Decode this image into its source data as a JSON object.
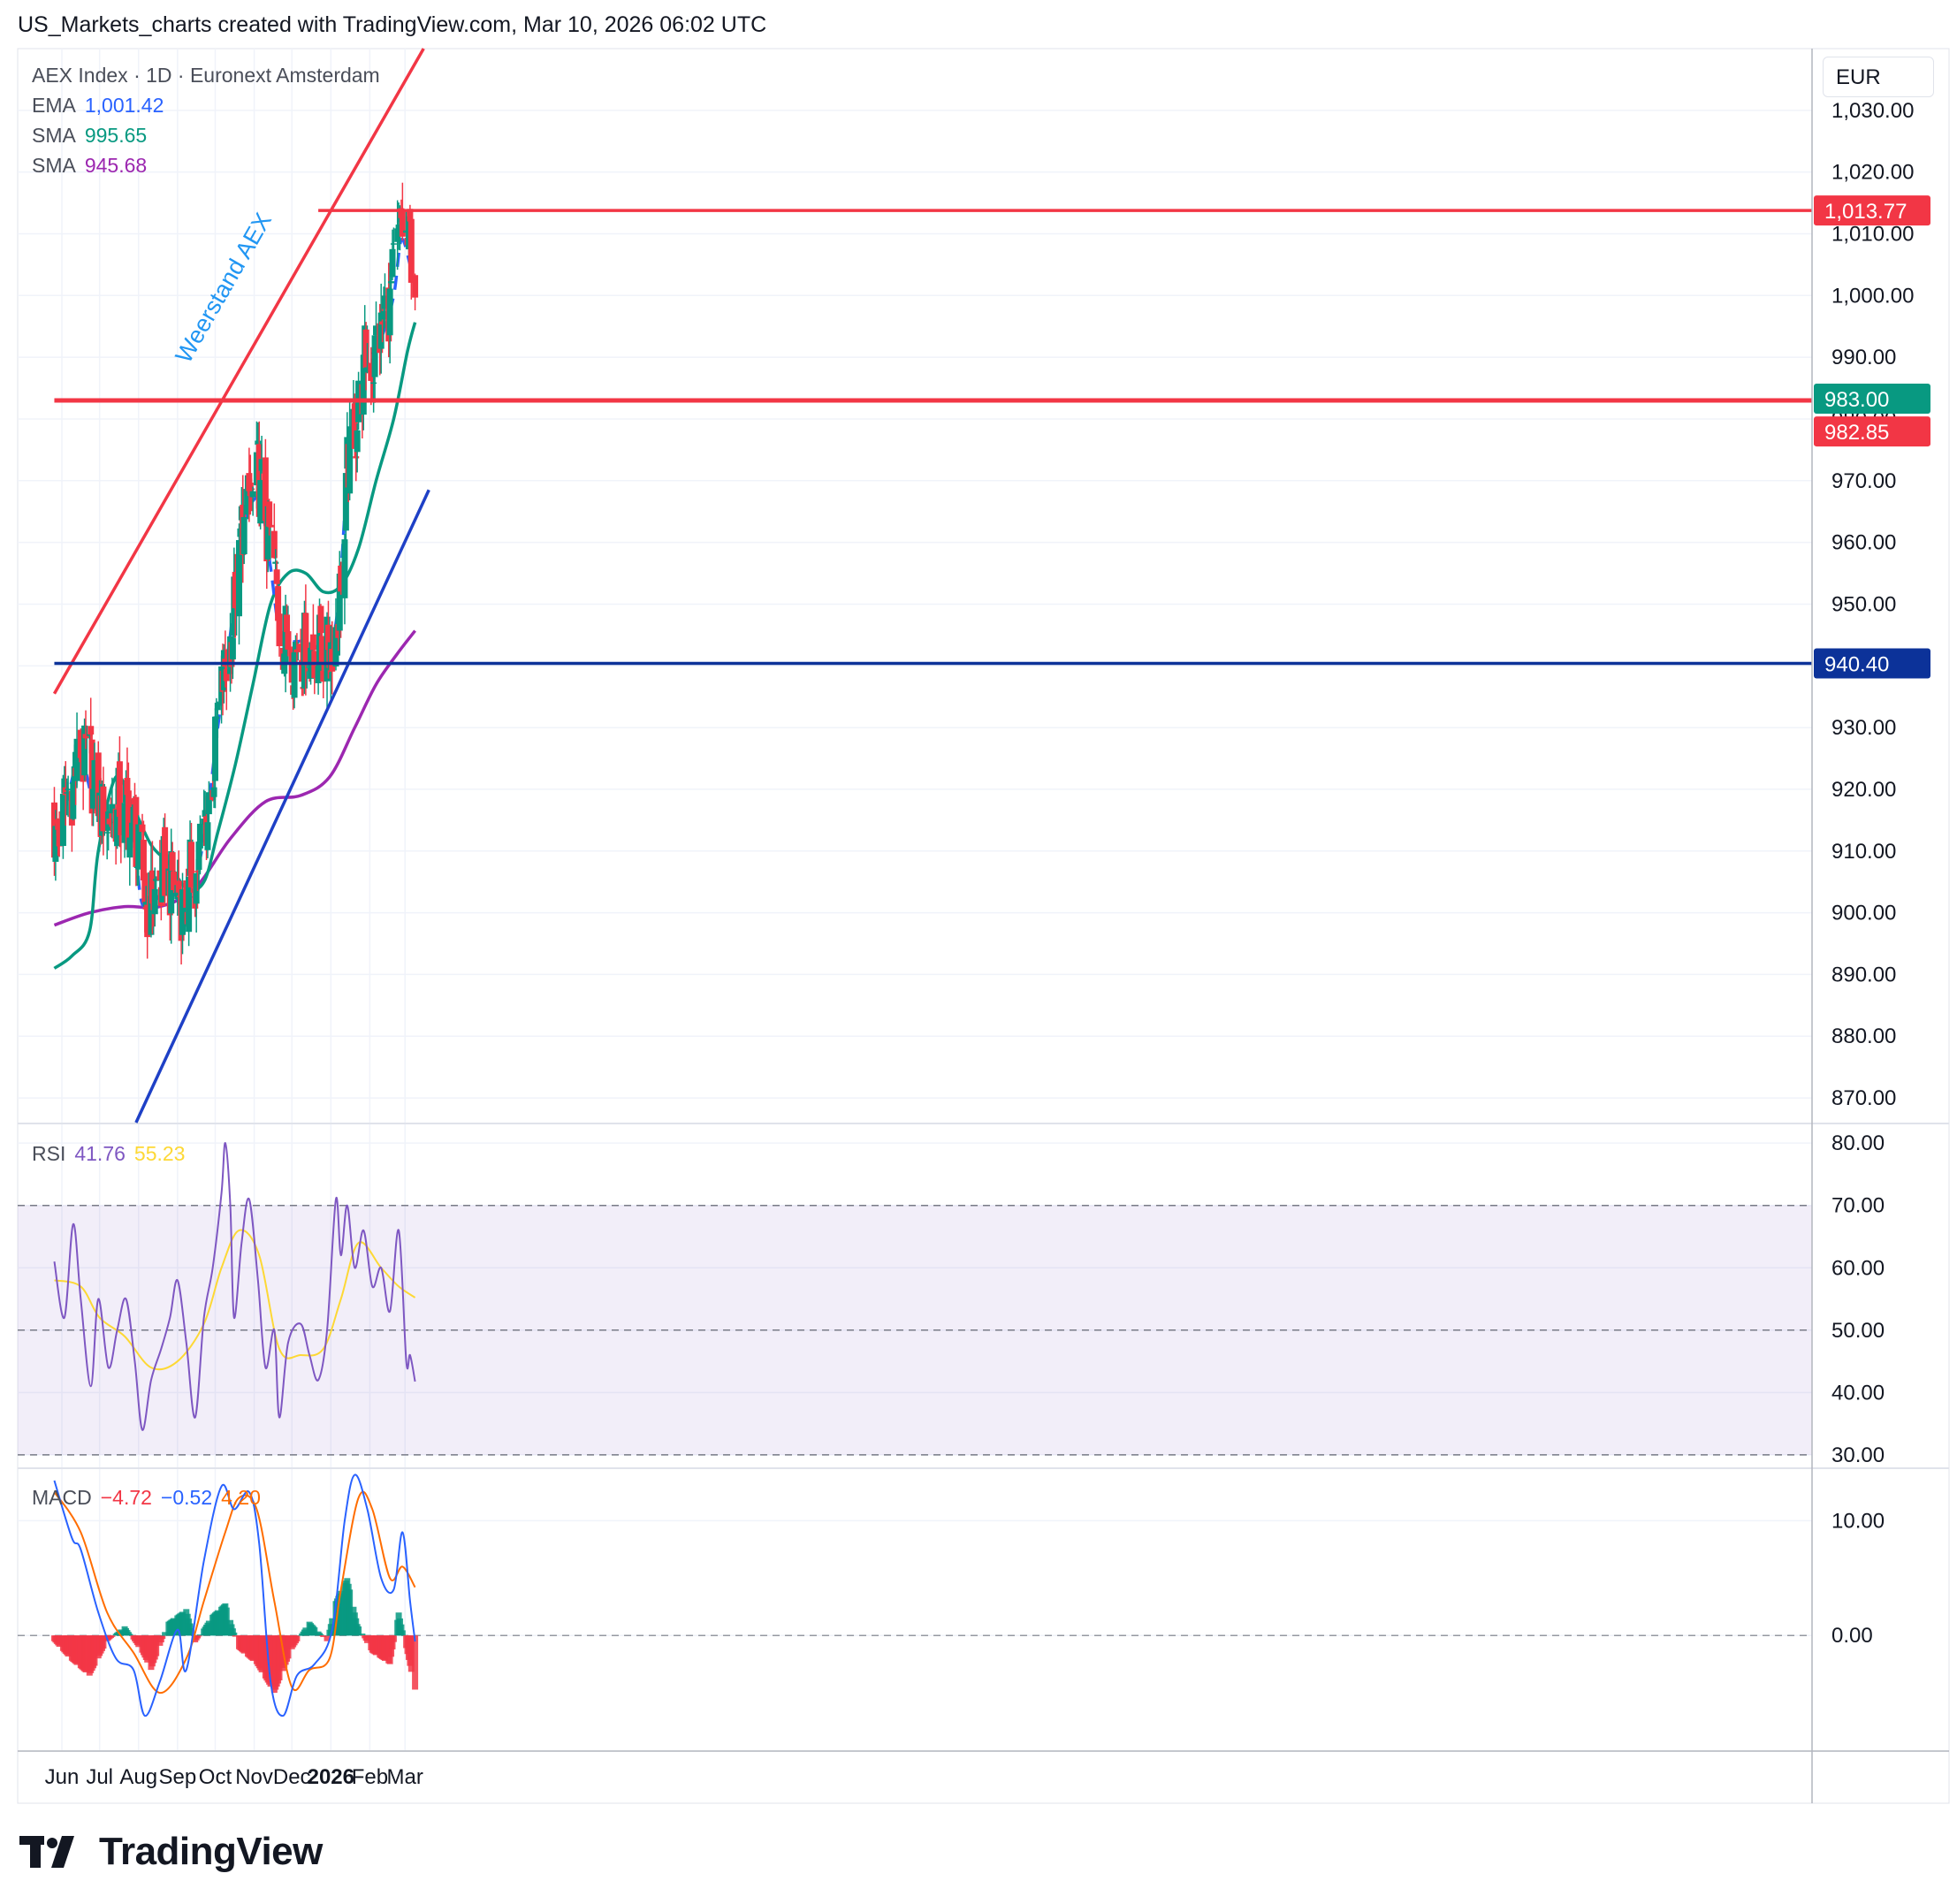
{
  "header": {
    "title": "US_Markets_charts created with TradingView.com, Mar 10, 2026 06:02 UTC"
  },
  "currency": "EUR",
  "brand": {
    "name": "TradingView"
  },
  "legend": {
    "symbol": "AEX Index · 1D · Euronext Amsterdam",
    "ema_label": "EMA",
    "ema_value": "1,001.42",
    "sma1_label": "SMA",
    "sma1_value": "995.65",
    "sma2_label": "SMA",
    "sma2_value": "945.68",
    "rsi_label": "RSI",
    "rsi_value": "41.76",
    "rsi_ma_value": "55.23",
    "macd_label": "MACD",
    "macd_hist": "−4.72",
    "macd_line": "−0.52",
    "macd_signal": "4.20"
  },
  "colors": {
    "up": "#089981",
    "down": "#f23645",
    "ema": "#2962ff",
    "sma50": "#089981",
    "sma200": "#9c27b0",
    "rsi": "#7e57c2",
    "rsi_ma": "#fdd835",
    "macd": "#2962ff",
    "signal": "#ff6d00",
    "resistance": "#f23645",
    "support": "#0c3299",
    "trend_support": "#1e40c6"
  },
  "chart_data": [
    {
      "type": "candlestick",
      "title": "AEX Index · 1D · Euronext Amsterdam",
      "x_ticks": [
        "Jun",
        "Jul",
        "Aug",
        "Sep",
        "Oct",
        "Nov",
        "Dec",
        "2026",
        "Feb",
        "Mar"
      ],
      "y_ticks": [
        "870.00",
        "880.00",
        "890.00",
        "900.00",
        "910.00",
        "920.00",
        "930.00",
        "940.00",
        "950.00",
        "960.00",
        "970.00",
        "980.00",
        "990.00",
        "1,000.00",
        "1,010.00",
        "1,020.00",
        "1,030.00"
      ],
      "ylim": [
        866,
        1040
      ],
      "annotation": "Weerstand AEX",
      "price_labels": [
        {
          "value": 1013.77,
          "text": "1,013.77",
          "color": "#f23645"
        },
        {
          "value": 983.0,
          "text": "983.00",
          "color": "#089981"
        },
        {
          "value": 982.85,
          "text": "982.85",
          "color": "#f23645"
        },
        {
          "value": 940.4,
          "text": "940.40",
          "color": "#0c3299"
        }
      ],
      "horizontal_lines": [
        {
          "value": 983.0,
          "color": "#f23645",
          "from_date": "2025-05-26"
        },
        {
          "value": 1013.77,
          "color": "#f23645",
          "from_date": "2025-12-22"
        },
        {
          "value": 940.4,
          "color": "#0c3299",
          "from_date": "2025-05-26"
        }
      ],
      "trend_lines": [
        {
          "name": "Weerstand AEX",
          "color": "#f23645",
          "points": [
            [
              "2025-05-26",
              935.5
            ],
            [
              "2026-03-20",
              1041.5
            ]
          ]
        },
        {
          "color": "#1e40c6",
          "points": [
            [
              "2025-07-30",
              866.0
            ],
            [
              "2026-03-20",
              968.5
            ]
          ]
        }
      ],
      "series": [
        {
          "name": "EMA",
          "points": [
            [
              "2025-05-26",
              910
            ],
            [
              "2025-06-05",
              918
            ],
            [
              "2025-06-16",
              925
            ],
            [
              "2025-06-30",
              915
            ],
            [
              "2025-07-14",
              916
            ],
            [
              "2025-07-28",
              912
            ],
            [
              "2025-08-05",
              901
            ],
            [
              "2025-08-25",
              904
            ],
            [
              "2025-09-08",
              901
            ],
            [
              "2025-09-22",
              912
            ],
            [
              "2025-10-03",
              930
            ],
            [
              "2025-10-13",
              945
            ],
            [
              "2025-10-23",
              962
            ],
            [
              "2025-11-05",
              967
            ],
            [
              "2025-11-14",
              956
            ],
            [
              "2025-11-21",
              946
            ],
            [
              "2025-12-01",
              944
            ],
            [
              "2025-12-15",
              944
            ],
            [
              "2025-12-29",
              942
            ],
            [
              "2026-01-07",
              950
            ],
            [
              "2026-01-15",
              972
            ],
            [
              "2026-01-27",
              987
            ],
            [
              "2026-02-10",
              993
            ],
            [
              "2026-02-20",
              1000
            ],
            [
              "2026-02-26",
              1009
            ],
            [
              "2026-03-05",
              1005
            ],
            [
              "2026-03-09",
              1001.42
            ]
          ]
        },
        {
          "name": "SMA",
          "points": [
            [
              "2025-05-26",
              891
            ],
            [
              "2025-06-09",
              893
            ],
            [
              "2025-06-23",
              897
            ],
            [
              "2025-06-30",
              910
            ],
            [
              "2025-07-14",
              922
            ],
            [
              "2025-07-28",
              917
            ],
            [
              "2025-08-11",
              911
            ],
            [
              "2025-08-25",
              908
            ],
            [
              "2025-09-08",
              904
            ],
            [
              "2025-09-22",
              905
            ],
            [
              "2025-10-03",
              913
            ],
            [
              "2025-10-17",
              924
            ],
            [
              "2025-10-31",
              937
            ],
            [
              "2025-11-14",
              950
            ],
            [
              "2025-11-28",
              955
            ],
            [
              "2025-12-12",
              955
            ],
            [
              "2025-12-26",
              952
            ],
            [
              "2026-01-09",
              953
            ],
            [
              "2026-01-23",
              959
            ],
            [
              "2026-02-06",
              970
            ],
            [
              "2026-02-20",
              980
            ],
            [
              "2026-03-03",
              991
            ],
            [
              "2026-03-09",
              995.65
            ]
          ]
        },
        {
          "name": "SMA",
          "points": [
            [
              "2025-05-26",
              898
            ],
            [
              "2025-06-23",
              900
            ],
            [
              "2025-07-21",
              901
            ],
            [
              "2025-08-18",
              901
            ],
            [
              "2025-09-15",
              904
            ],
            [
              "2025-10-13",
              912
            ],
            [
              "2025-11-10",
              918
            ],
            [
              "2025-12-08",
              919
            ],
            [
              "2025-12-31",
              922
            ],
            [
              "2026-01-20",
              930
            ],
            [
              "2026-02-06",
              937
            ],
            [
              "2026-02-23",
              942
            ],
            [
              "2026-03-09",
              945.68
            ]
          ]
        }
      ]
    },
    {
      "type": "line",
      "title": "RSI",
      "y_ticks": [
        "30.00",
        "40.00",
        "50.00",
        "60.00",
        "70.00",
        "80.00"
      ],
      "ylim": [
        28,
        83
      ],
      "bands": [
        30,
        50,
        70
      ],
      "series": [
        {
          "name": "RSI",
          "points": [
            [
              "2025-05-26",
              61
            ],
            [
              "2025-06-03",
              52
            ],
            [
              "2025-06-10",
              67
            ],
            [
              "2025-06-16",
              55
            ],
            [
              "2025-06-24",
              41
            ],
            [
              "2025-06-30",
              55
            ],
            [
              "2025-07-08",
              44
            ],
            [
              "2025-07-15",
              50
            ],
            [
              "2025-07-22",
              55
            ],
            [
              "2025-07-29",
              45
            ],
            [
              "2025-08-04",
              34
            ],
            [
              "2025-08-11",
              42
            ],
            [
              "2025-08-19",
              47
            ],
            [
              "2025-08-26",
              52
            ],
            [
              "2025-09-01",
              58
            ],
            [
              "2025-09-08",
              48
            ],
            [
              "2025-09-15",
              36
            ],
            [
              "2025-09-22",
              52
            ],
            [
              "2025-09-29",
              60
            ],
            [
              "2025-10-06",
              72
            ],
            [
              "2025-10-09",
              80
            ],
            [
              "2025-10-13",
              70
            ],
            [
              "2025-10-16",
              52
            ],
            [
              "2025-10-22",
              64
            ],
            [
              "2025-10-28",
              71
            ],
            [
              "2025-11-04",
              58
            ],
            [
              "2025-11-10",
              44
            ],
            [
              "2025-11-17",
              50
            ],
            [
              "2025-11-21",
              36
            ],
            [
              "2025-11-28",
              48
            ],
            [
              "2025-12-08",
              51
            ],
            [
              "2025-12-15",
              46
            ],
            [
              "2025-12-22",
              42
            ],
            [
              "2025-12-29",
              50
            ],
            [
              "2026-01-05",
              71
            ],
            [
              "2026-01-09",
              62
            ],
            [
              "2026-01-14",
              70
            ],
            [
              "2026-01-20",
              60
            ],
            [
              "2026-01-27",
              66
            ],
            [
              "2026-02-03",
              57
            ],
            [
              "2026-02-10",
              60
            ],
            [
              "2026-02-17",
              53
            ],
            [
              "2026-02-24",
              66
            ],
            [
              "2026-03-02",
              45
            ],
            [
              "2026-03-05",
              46
            ],
            [
              "2026-03-09",
              41.76
            ]
          ]
        },
        {
          "name": "",
          "points": [
            [
              "2025-05-26",
              58
            ],
            [
              "2025-06-16",
              57
            ],
            [
              "2025-07-01",
              52
            ],
            [
              "2025-07-21",
              49
            ],
            [
              "2025-08-11",
              44
            ],
            [
              "2025-09-01",
              45
            ],
            [
              "2025-09-22",
              51
            ],
            [
              "2025-10-06",
              60
            ],
            [
              "2025-10-20",
              66
            ],
            [
              "2025-11-05",
              62
            ],
            [
              "2025-11-21",
              47
            ],
            [
              "2025-12-08",
              46
            ],
            [
              "2025-12-26",
              47
            ],
            [
              "2026-01-09",
              55
            ],
            [
              "2026-01-23",
              64
            ],
            [
              "2026-02-10",
              60
            ],
            [
              "2026-02-24",
              57
            ],
            [
              "2026-03-09",
              55.23
            ]
          ]
        }
      ]
    },
    {
      "type": "bar+line",
      "title": "MACD",
      "y_ticks": [
        "0.00",
        "10.00"
      ],
      "ylim": [
        -10,
        14.5
      ],
      "histogram": [
        [
          "2025-05-26",
          -0.5
        ],
        [
          "2025-06-09",
          -2.2
        ],
        [
          "2025-06-23",
          -3.5
        ],
        [
          "2025-07-07",
          -0.5
        ],
        [
          "2025-07-21",
          0.8
        ],
        [
          "2025-08-04",
          -1.5
        ],
        [
          "2025-08-11",
          -3
        ],
        [
          "2025-08-25",
          1.2
        ],
        [
          "2025-09-08",
          2.3
        ],
        [
          "2025-09-15",
          -0.6
        ],
        [
          "2025-09-29",
          1.8
        ],
        [
          "2025-10-09",
          2.8
        ],
        [
          "2025-10-20",
          -1.2
        ],
        [
          "2025-11-03",
          -2.5
        ],
        [
          "2025-11-17",
          -5
        ],
        [
          "2025-12-01",
          -1.2
        ],
        [
          "2025-12-15",
          1.2
        ],
        [
          "2025-12-29",
          -0.5
        ],
        [
          "2026-01-05",
          3
        ],
        [
          "2026-01-14",
          5
        ],
        [
          "2026-01-22",
          1
        ],
        [
          "2026-02-03",
          -1.5
        ],
        [
          "2026-02-17",
          -2.5
        ],
        [
          "2026-02-24",
          2
        ],
        [
          "2026-03-09",
          -4.72
        ]
      ],
      "series": [
        {
          "name": "MACD",
          "points": [
            [
              "2025-05-26",
              13.5
            ],
            [
              "2025-06-09",
              8.5
            ],
            [
              "2025-06-16",
              7.5
            ],
            [
              "2025-06-30",
              2
            ],
            [
              "2025-07-14",
              -2
            ],
            [
              "2025-07-28",
              -3
            ],
            [
              "2025-08-06",
              -7
            ],
            [
              "2025-08-18",
              -4
            ],
            [
              "2025-09-01",
              0.5
            ],
            [
              "2025-09-08",
              -3
            ],
            [
              "2025-09-22",
              6.5
            ],
            [
              "2025-10-06",
              13
            ],
            [
              "2025-10-16",
              11
            ],
            [
              "2025-10-28",
              12.5
            ],
            [
              "2025-11-05",
              8
            ],
            [
              "2025-11-14",
              -4
            ],
            [
              "2025-11-24",
              -7
            ],
            [
              "2025-12-05",
              -3.5
            ],
            [
              "2025-12-19",
              -2.5
            ],
            [
              "2026-01-02",
              0.5
            ],
            [
              "2026-01-12",
              10
            ],
            [
              "2026-01-20",
              14
            ],
            [
              "2026-01-30",
              11
            ],
            [
              "2026-02-10",
              5
            ],
            [
              "2026-02-20",
              4
            ],
            [
              "2026-02-27",
              9
            ],
            [
              "2026-03-05",
              3
            ],
            [
              "2026-03-09",
              -0.52
            ]
          ]
        },
        {
          "name": "",
          "points": [
            [
              "2025-05-26",
              12.5
            ],
            [
              "2025-06-16",
              9
            ],
            [
              "2025-07-07",
              2
            ],
            [
              "2025-07-28",
              -1.5
            ],
            [
              "2025-08-18",
              -5
            ],
            [
              "2025-09-08",
              -2
            ],
            [
              "2025-09-22",
              3
            ],
            [
              "2025-10-09",
              9
            ],
            [
              "2025-10-20",
              12
            ],
            [
              "2025-11-03",
              11
            ],
            [
              "2025-11-17",
              3
            ],
            [
              "2025-12-01",
              -4.5
            ],
            [
              "2025-12-15",
              -3
            ],
            [
              "2025-12-31",
              -2
            ],
            [
              "2026-01-09",
              4
            ],
            [
              "2026-01-23",
              12
            ],
            [
              "2026-02-03",
              11
            ],
            [
              "2026-02-17",
              5
            ],
            [
              "2026-02-27",
              6
            ],
            [
              "2026-03-09",
              4.2
            ]
          ]
        }
      ]
    }
  ]
}
